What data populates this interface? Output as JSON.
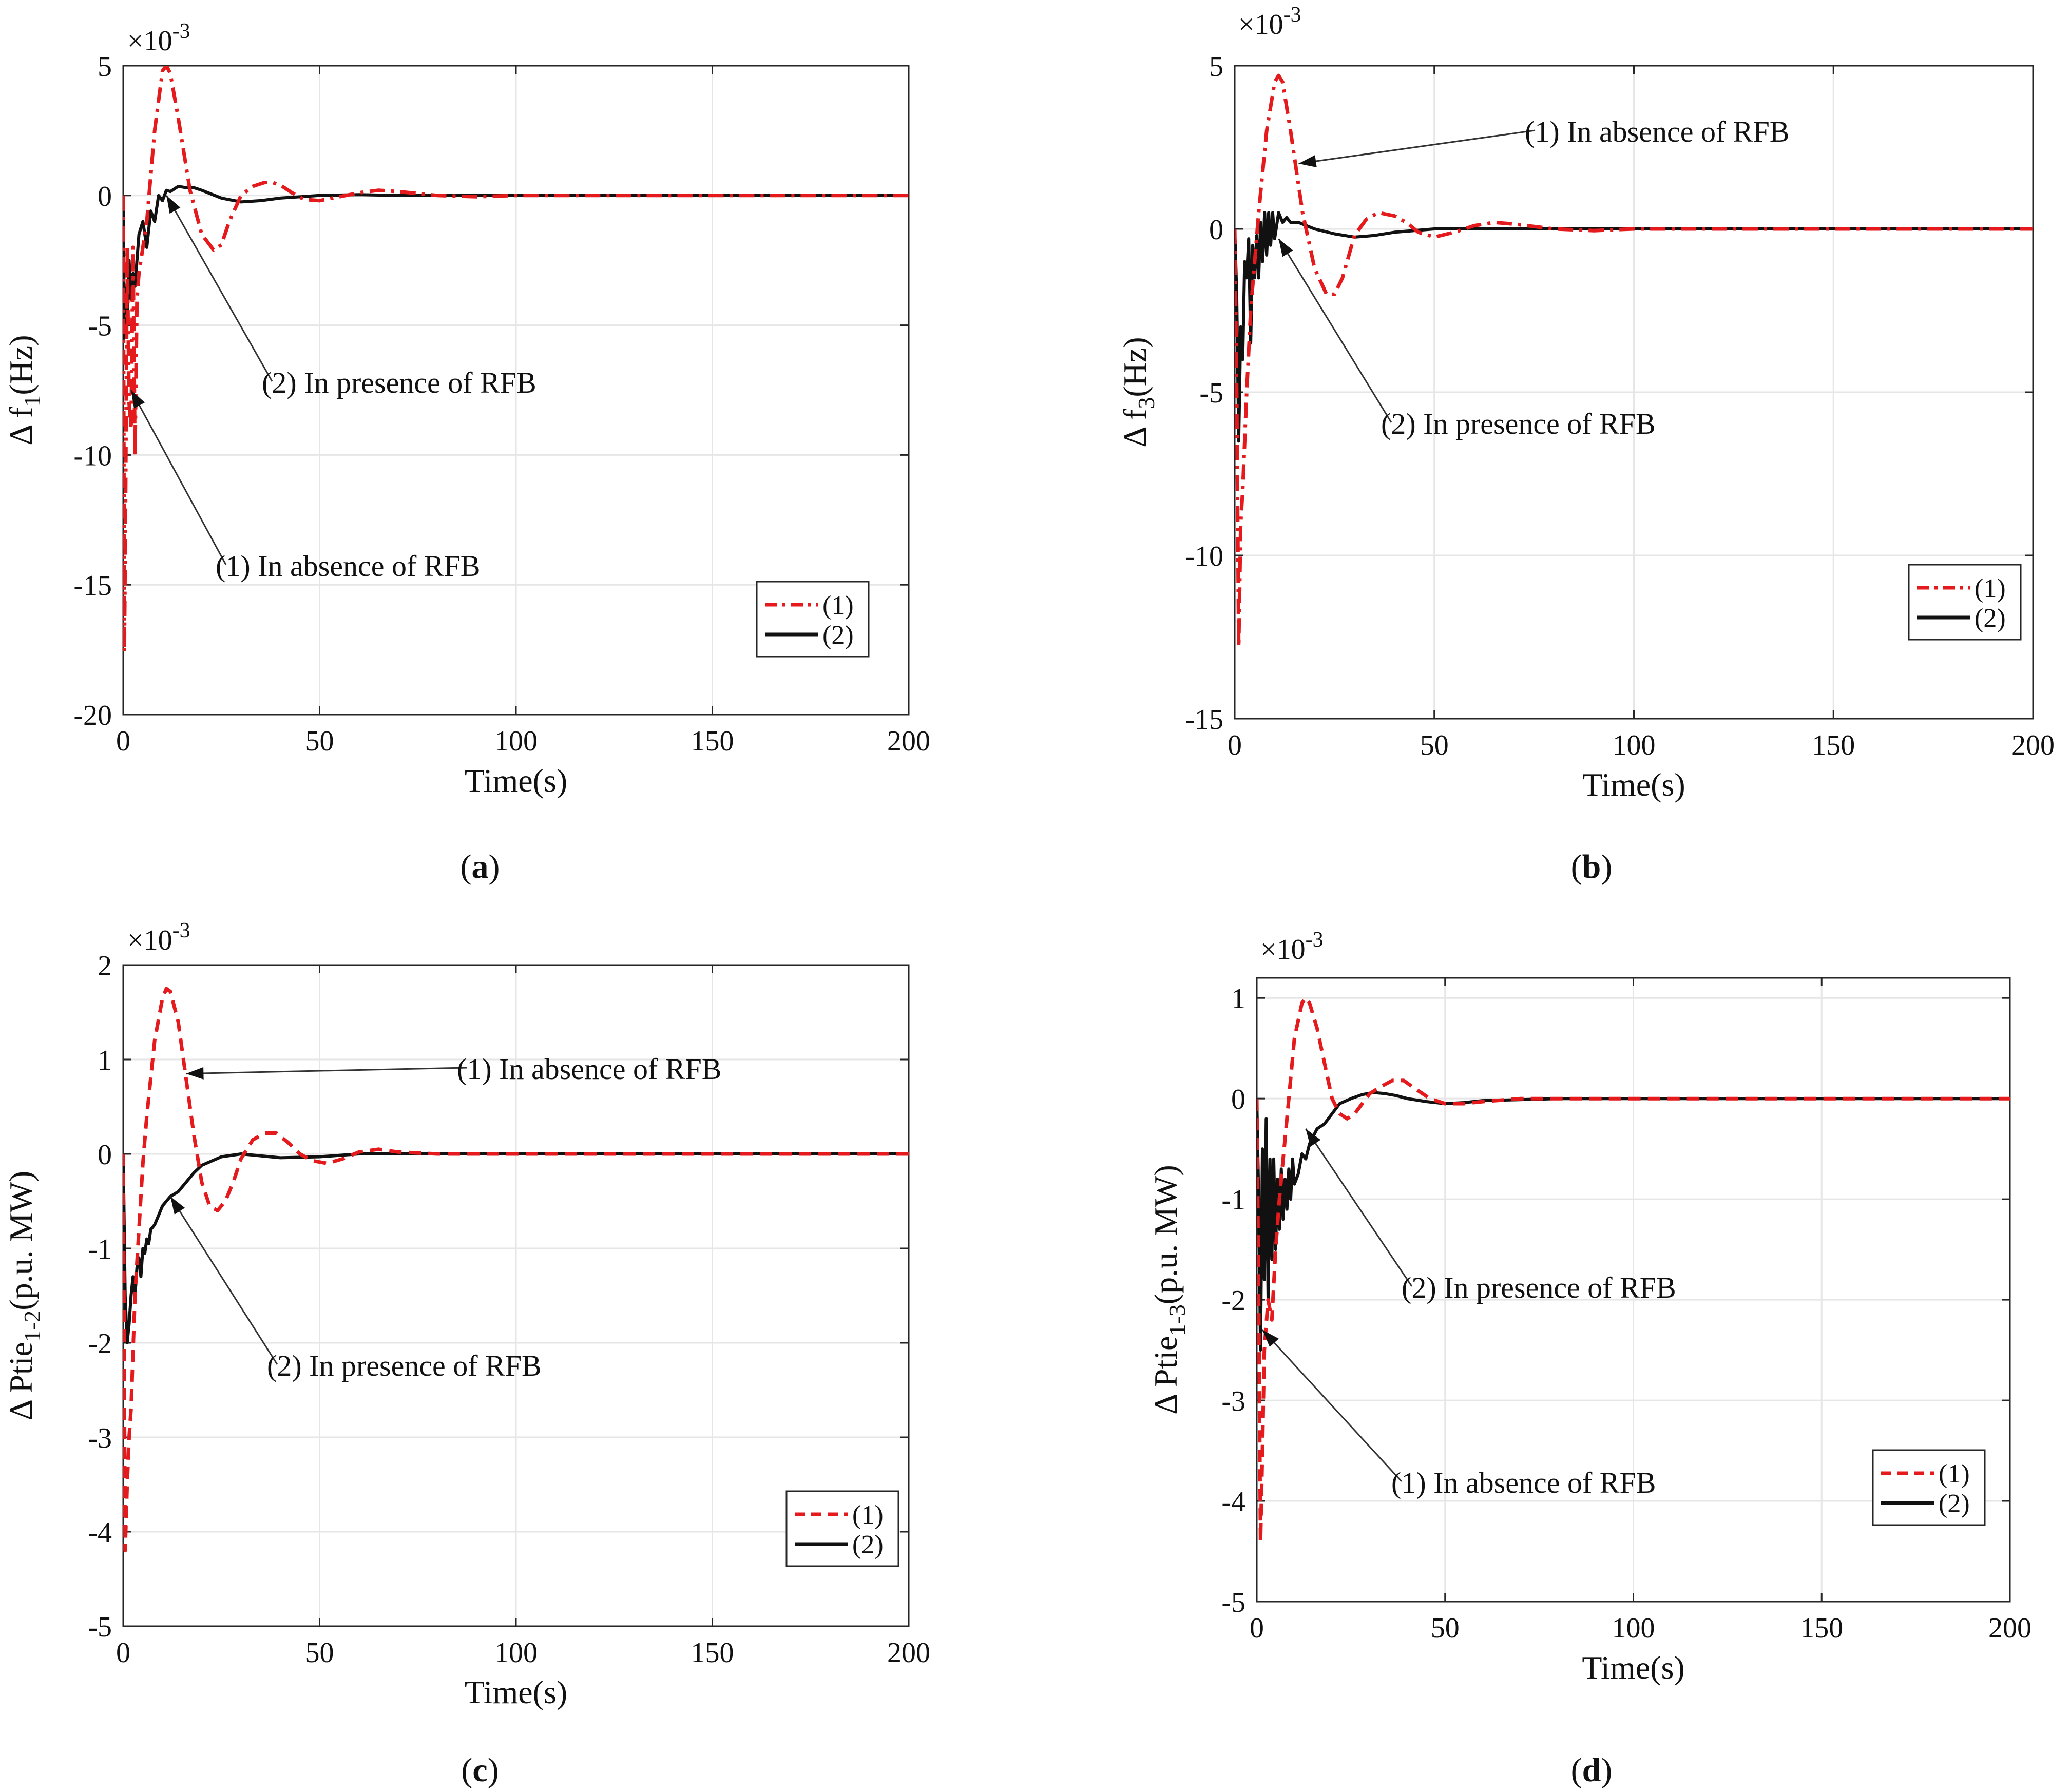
{
  "colors": {
    "series1": "#e41a1c",
    "series2": "#111111",
    "grid": "#e6e6e6",
    "axis": "#262626"
  },
  "chart_data": [
    {
      "id": "a",
      "type": "line",
      "caption_letter": "a",
      "multiplier_label": "×10",
      "multiplier_exp": "-3",
      "xlabel": "Time(s)",
      "ylabel_prefix": "Δ f",
      "ylabel_sub": "1",
      "ylabel_suffix": "(Hz)",
      "xlim": [
        0,
        200
      ],
      "ylim": [
        -20,
        5
      ],
      "xticks": [
        0,
        50,
        100,
        150,
        200
      ],
      "yticks": [
        -20,
        -15,
        -10,
        -5,
        0,
        5
      ],
      "xtick_labels": [
        "0",
        "50",
        "100",
        "150",
        "200"
      ],
      "ytick_labels": [
        "-20",
        "-15",
        "-10",
        "-5",
        "0",
        "5"
      ],
      "grid": true,
      "legend_position": "lower-right",
      "series": [
        {
          "name": "(1)",
          "style": "dashdot",
          "x": [
            0,
            0.3,
            0.6,
            1.0,
            1.5,
            2,
            2.5,
            3,
            3.5,
            4,
            5,
            6,
            8,
            10,
            11,
            12,
            14,
            17,
            20,
            23,
            25,
            27,
            30,
            33,
            36,
            38,
            40,
            43,
            46,
            50,
            55,
            60,
            65,
            70,
            80,
            90,
            100,
            120,
            150,
            200
          ],
          "y": [
            0,
            -17.6,
            -12,
            -2,
            -8,
            -9,
            -2,
            -10,
            -4,
            -3,
            -2,
            -1,
            2.5,
            4.8,
            5.0,
            4.7,
            3.0,
            0.2,
            -1.5,
            -2.1,
            -1.9,
            -1.0,
            0.0,
            0.35,
            0.5,
            0.5,
            0.4,
            0.1,
            -0.15,
            -0.2,
            -0.05,
            0.1,
            0.2,
            0.15,
            0,
            -0.05,
            0,
            0,
            0,
            0
          ]
        },
        {
          "name": "(2)",
          "style": "solid",
          "x": [
            0,
            0.3,
            0.6,
            1,
            1.5,
            2,
            2.5,
            3,
            4,
            5,
            6,
            7,
            8,
            9,
            10,
            11,
            12,
            14,
            16,
            18,
            20,
            25,
            30,
            35,
            40,
            50,
            60,
            70,
            80,
            100,
            150,
            200
          ],
          "y": [
            0,
            -5.5,
            -3.5,
            -5.0,
            -2.5,
            -4.0,
            -3.0,
            -3.5,
            -1.5,
            -1.0,
            -2.0,
            -0.6,
            -1.0,
            0,
            -0.2,
            0.2,
            0.15,
            0.35,
            0.3,
            0.3,
            0.2,
            -0.1,
            -0.25,
            -0.2,
            -0.1,
            0,
            0.03,
            0,
            0,
            0,
            0,
            0
          ]
        }
      ],
      "annotations": [
        {
          "text": "(2) In presence  of RFB",
          "target_x": 11,
          "target_y": 0
        },
        {
          "text": "(1) In absence  of RFB",
          "target_x": 2,
          "target_y": -7.5
        }
      ],
      "legend_labels": [
        "(1)",
        "(2)"
      ]
    },
    {
      "id": "b",
      "type": "line",
      "caption_letter": "b",
      "multiplier_label": "×10",
      "multiplier_exp": "-3",
      "xlabel": "Time(s)",
      "ylabel_prefix": "Δ f",
      "ylabel_sub": "3",
      "ylabel_suffix": "(Hz)",
      "xlim": [
        0,
        200
      ],
      "ylim": [
        -15,
        5
      ],
      "xticks": [
        0,
        50,
        100,
        150,
        200
      ],
      "yticks": [
        -15,
        -10,
        -5,
        0,
        5
      ],
      "xtick_labels": [
        "0",
        "50",
        "100",
        "150",
        "200"
      ],
      "ytick_labels": [
        "-15",
        "-10",
        "-5",
        "0",
        "5"
      ],
      "grid": true,
      "legend_position": "lower-right",
      "series": [
        {
          "name": "(1)",
          "style": "dashdot",
          "x": [
            0,
            0.5,
            1,
            1.5,
            2,
            3,
            4,
            5,
            6,
            8,
            10,
            11,
            12,
            14,
            17,
            20,
            23,
            25,
            27,
            30,
            33,
            36,
            38,
            40,
            43,
            46,
            50,
            55,
            60,
            65,
            70,
            80,
            90,
            100,
            150,
            200
          ],
          "y": [
            0,
            -5,
            -12.8,
            -9,
            -8,
            -5,
            -2.5,
            -1,
            0.5,
            3.0,
            4.5,
            4.7,
            4.5,
            3.0,
            0.5,
            -1.2,
            -2.0,
            -2.0,
            -1.5,
            -0.2,
            0.3,
            0.5,
            0.45,
            0.4,
            0.2,
            -0.1,
            -0.25,
            -0.1,
            0.1,
            0.2,
            0.15,
            0,
            -0.05,
            0,
            0,
            0
          ]
        },
        {
          "name": "(2)",
          "style": "solid",
          "x": [
            0,
            0.5,
            1,
            1.5,
            2,
            2.5,
            3,
            3.5,
            4,
            4.5,
            5,
            5.5,
            6,
            6.5,
            7,
            7.5,
            8,
            8.5,
            9,
            9.5,
            10,
            11,
            12,
            13,
            14,
            16,
            18,
            20,
            25,
            30,
            35,
            40,
            50,
            60,
            80,
            100,
            150,
            200
          ],
          "y": [
            0,
            -2,
            -6.5,
            -3,
            -4,
            -1,
            -1.5,
            -0.3,
            -3.5,
            -0.5,
            -1.5,
            -0.2,
            -1.5,
            0.2,
            -1.0,
            0.5,
            -0.8,
            0.5,
            -0.5,
            0.5,
            -0.3,
            0.5,
            0.2,
            0.35,
            0.2,
            0.2,
            0.1,
            0.0,
            -0.15,
            -0.25,
            -0.2,
            -0.1,
            0,
            0,
            0,
            0,
            0,
            0
          ]
        }
      ],
      "annotations": [
        {
          "text": "(1) In absence  of RFB",
          "target_x": 16,
          "target_y": 2.0
        },
        {
          "text": "(2) In presence  of RFB",
          "target_x": 11,
          "target_y": -0.3
        }
      ],
      "legend_labels": [
        "(1)",
        "(2)"
      ]
    },
    {
      "id": "c",
      "type": "line",
      "caption_letter": "c",
      "multiplier_label": "×10",
      "multiplier_exp": "-3",
      "xlabel": "Time(s)",
      "ylabel_prefix": "Δ Ptie",
      "ylabel_sub": "1-2",
      "ylabel_suffix": "(p.u. MW)",
      "xlim": [
        0,
        200
      ],
      "ylim": [
        -5,
        2
      ],
      "xticks": [
        0,
        50,
        100,
        150,
        200
      ],
      "yticks": [
        -5,
        -4,
        -3,
        -2,
        -1,
        0,
        1,
        2
      ],
      "xtick_labels": [
        "0",
        "50",
        "100",
        "150",
        "200"
      ],
      "ytick_labels": [
        "-5",
        "-4",
        "-3",
        "-2",
        "-1",
        "0",
        "1",
        "2"
      ],
      "grid": true,
      "legend_position": "lower-right",
      "series": [
        {
          "name": "(1)",
          "style": "dashed",
          "x": [
            0,
            0.5,
            1,
            1.5,
            2,
            3,
            4,
            5,
            6,
            8,
            10,
            11,
            12,
            14,
            16,
            18,
            20,
            22,
            24,
            26,
            28,
            30,
            33,
            36,
            39,
            42,
            45,
            48,
            52,
            56,
            60,
            65,
            70,
            80,
            90,
            100,
            150,
            200
          ],
          "y": [
            0,
            -4.2,
            -3.5,
            -3.0,
            -2.7,
            -1.5,
            -0.8,
            -0.1,
            0.4,
            1.2,
            1.65,
            1.75,
            1.72,
            1.4,
            0.8,
            0.2,
            -0.3,
            -0.55,
            -0.6,
            -0.5,
            -0.3,
            -0.05,
            0.15,
            0.22,
            0.22,
            0.12,
            0.0,
            -0.07,
            -0.1,
            -0.05,
            0.02,
            0.05,
            0.02,
            0,
            0,
            0,
            0,
            0
          ]
        },
        {
          "name": "(2)",
          "style": "solid",
          "x": [
            0,
            0.5,
            1,
            1.5,
            2,
            2.5,
            3,
            3.5,
            4,
            4.5,
            5,
            5.5,
            6,
            6.5,
            7,
            8,
            9,
            10,
            11,
            12,
            14,
            16,
            18,
            20,
            25,
            30,
            35,
            40,
            50,
            60,
            80,
            100,
            150,
            200
          ],
          "y": [
            0,
            -1.5,
            -2.0,
            -1.8,
            -1.5,
            -1.3,
            -1.5,
            -1.2,
            -1.1,
            -1.3,
            -1.0,
            -1.05,
            -0.9,
            -0.95,
            -0.8,
            -0.75,
            -0.65,
            -0.55,
            -0.5,
            -0.45,
            -0.4,
            -0.3,
            -0.2,
            -0.12,
            -0.03,
            0,
            -0.02,
            -0.04,
            -0.03,
            0,
            0,
            0,
            0,
            0
          ]
        }
      ],
      "annotations": [
        {
          "text": "(1) In absence  of RFB",
          "target_x": 16,
          "target_y": 0.85
        },
        {
          "text": "(2) In presence  of RFB",
          "target_x": 12,
          "target_y": -0.45
        }
      ],
      "legend_labels": [
        "(1)",
        "(2)"
      ]
    },
    {
      "id": "d",
      "type": "line",
      "caption_letter": "d",
      "multiplier_label": "×10",
      "multiplier_exp": "-3",
      "xlabel": "Time(s)",
      "ylabel_prefix": "Δ Ptie",
      "ylabel_sub": "1-3",
      "ylabel_suffix": "(p.u. MW)",
      "xlim": [
        0,
        200
      ],
      "ylim": [
        -5,
        1.2
      ],
      "xticks": [
        0,
        50,
        100,
        150,
        200
      ],
      "yticks": [
        -5,
        -4,
        -3,
        -2,
        -1,
        0,
        1
      ],
      "xtick_labels": [
        "0",
        "50",
        "100",
        "150",
        "200"
      ],
      "ytick_labels": [
        "-5",
        "-4",
        "-3",
        "-2",
        "-1",
        "0",
        "1"
      ],
      "grid": true,
      "legend_position": "lower-right",
      "series": [
        {
          "name": "(1)",
          "style": "dashed",
          "x": [
            0,
            0.5,
            1,
            1.5,
            2,
            3,
            4,
            5,
            6,
            8,
            10,
            12,
            13,
            14,
            16,
            18,
            20,
            22,
            24,
            26,
            28,
            30,
            33,
            36,
            39,
            42,
            46,
            50,
            55,
            60,
            70,
            80,
            100,
            150,
            200
          ],
          "y": [
            0,
            -2.0,
            -4.4,
            -3.5,
            -2.5,
            -2.0,
            -2.2,
            -1.5,
            -1.0,
            -0.2,
            0.6,
            0.95,
            1.0,
            0.95,
            0.7,
            0.35,
            0.0,
            -0.15,
            -0.2,
            -0.15,
            -0.05,
            0.05,
            0.12,
            0.18,
            0.18,
            0.1,
            0.0,
            -0.05,
            -0.05,
            -0.03,
            0,
            0,
            0,
            0,
            0
          ]
        },
        {
          "name": "(2)",
          "style": "solid",
          "x": [
            0,
            0.5,
            1,
            1.5,
            2,
            2.5,
            3,
            3.5,
            4,
            4.5,
            5,
            5.5,
            6,
            6.5,
            7,
            7.5,
            8,
            8.5,
            9,
            9.5,
            10,
            11,
            12,
            13,
            14,
            16,
            18,
            20,
            22,
            25,
            28,
            31,
            34,
            37,
            40,
            45,
            50,
            55,
            60,
            80,
            100,
            150,
            200
          ],
          "y": [
            0,
            -1.0,
            -2.5,
            -0.5,
            -1.8,
            -0.2,
            -2.0,
            -0.6,
            -1.6,
            -0.6,
            -1.5,
            -0.8,
            -1.3,
            -0.7,
            -1.2,
            -0.8,
            -1.1,
            -0.7,
            -1.0,
            -0.6,
            -0.85,
            -0.75,
            -0.55,
            -0.6,
            -0.45,
            -0.3,
            -0.25,
            -0.15,
            -0.05,
            0.0,
            0.04,
            0.06,
            0.05,
            0.03,
            0.0,
            -0.03,
            -0.05,
            -0.04,
            -0.02,
            0,
            0,
            0,
            0
          ]
        }
      ],
      "annotations": [
        {
          "text": "(2) In presence  of RFB",
          "target_x": 13,
          "target_y": -0.3
        },
        {
          "text": "(1) In absence  of RFB",
          "target_x": 1.5,
          "target_y": -2.3
        }
      ],
      "legend_labels": [
        "(1)",
        "(2)"
      ]
    }
  ]
}
